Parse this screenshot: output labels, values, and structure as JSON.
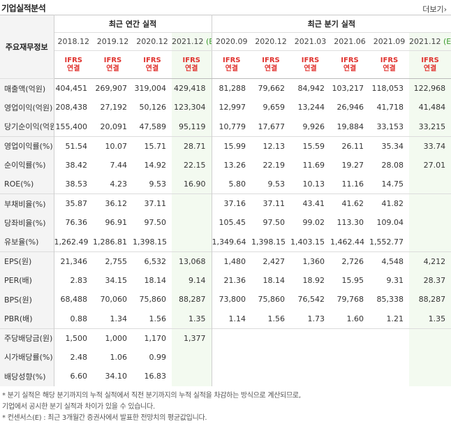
{
  "title": "기업실적분석",
  "more_label": "더보기",
  "more_arrow": "›",
  "row_header_label": "주요재무정보",
  "group_annual": "최근 연간 실적",
  "group_quarter": "최근 분기 실적",
  "periods": [
    "2018.12",
    "2019.12",
    "2020.12",
    "2021.12",
    "2020.09",
    "2020.12",
    "2021.03",
    "2021.06",
    "2021.09",
    "2021.12"
  ],
  "est_suffix": "(E)",
  "ifrs_line1": "IFRS",
  "ifrs_line2": "연결",
  "rows": [
    {
      "label": "매출액(억원)",
      "values": [
        "404,451",
        "269,907",
        "319,004",
        "429,418",
        "81,288",
        "79,662",
        "84,942",
        "103,217",
        "118,053",
        "122,968"
      ]
    },
    {
      "label": "영업이익(억원)",
      "values": [
        "208,438",
        "27,192",
        "50,126",
        "123,304",
        "12,997",
        "9,659",
        "13,244",
        "26,946",
        "41,718",
        "41,484"
      ]
    },
    {
      "label": "당기순이익(억원)",
      "values": [
        "155,400",
        "20,091",
        "47,589",
        "95,119",
        "10,779",
        "17,677",
        "9,926",
        "19,884",
        "33,153",
        "33,215"
      ]
    },
    {
      "label": "영업이익률(%)",
      "values": [
        "51.54",
        "10.07",
        "15.71",
        "28.71",
        "15.99",
        "12.13",
        "15.59",
        "26.11",
        "35.34",
        "33.74"
      ]
    },
    {
      "label": "순이익률(%)",
      "values": [
        "38.42",
        "7.44",
        "14.92",
        "22.15",
        "13.26",
        "22.19",
        "11.69",
        "19.27",
        "28.08",
        "27.01"
      ]
    },
    {
      "label": "ROE(%)",
      "values": [
        "38.53",
        "4.23",
        "9.53",
        "16.90",
        "5.80",
        "9.53",
        "10.13",
        "11.16",
        "14.75",
        ""
      ]
    },
    {
      "label": "부채비율(%)",
      "values": [
        "35.87",
        "36.12",
        "37.11",
        "",
        "37.16",
        "37.11",
        "43.41",
        "41.62",
        "41.82",
        ""
      ]
    },
    {
      "label": "당좌비율(%)",
      "values": [
        "76.36",
        "96.91",
        "97.50",
        "",
        "105.45",
        "97.50",
        "99.02",
        "113.30",
        "109.04",
        ""
      ]
    },
    {
      "label": "유보율(%)",
      "values": [
        "1,262.49",
        "1,286.81",
        "1,398.15",
        "",
        "1,349.64",
        "1,398.15",
        "1,403.15",
        "1,462.44",
        "1,552.77",
        ""
      ]
    },
    {
      "label": "EPS(원)",
      "values": [
        "21,346",
        "2,755",
        "6,532",
        "13,068",
        "1,480",
        "2,427",
        "1,360",
        "2,726",
        "4,548",
        "4,212"
      ]
    },
    {
      "label": "PER(배)",
      "values": [
        "2.83",
        "34.15",
        "18.14",
        "9.14",
        "21.36",
        "18.14",
        "18.92",
        "15.95",
        "9.31",
        "28.37"
      ]
    },
    {
      "label": "BPS(원)",
      "values": [
        "68,488",
        "70,060",
        "75,860",
        "88,287",
        "73,800",
        "75,860",
        "76,542",
        "79,768",
        "85,338",
        "88,287"
      ]
    },
    {
      "label": "PBR(배)",
      "values": [
        "0.88",
        "1.34",
        "1.56",
        "1.35",
        "1.14",
        "1.56",
        "1.73",
        "1.60",
        "1.21",
        "1.35"
      ]
    },
    {
      "label": "주당배당금(원)",
      "values": [
        "1,500",
        "1,000",
        "1,170",
        "1,377",
        "",
        "",
        "",
        "",
        "",
        ""
      ]
    },
    {
      "label": "시가배당률(%)",
      "values": [
        "2.48",
        "1.06",
        "0.99",
        "",
        "",
        "",
        "",
        "",
        "",
        ""
      ]
    },
    {
      "label": "배당성향(%)",
      "values": [
        "6.60",
        "34.10",
        "16.83",
        "",
        "",
        "",
        "",
        "",
        "",
        ""
      ]
    }
  ],
  "footnotes": [
    "* 분기 실적은 해당 분기까지의 누적 실적에서 직전 분기까지의 누적 실적을 차감하는 방식으로 계산되므로,",
    "  기업에서 공시한 분기 실적과 차이가 있을 수 있습니다.",
    "* 컨센서스(E) : 최근 3개월간 증권사에서 발표한 전망치의 평균값입니다."
  ]
}
